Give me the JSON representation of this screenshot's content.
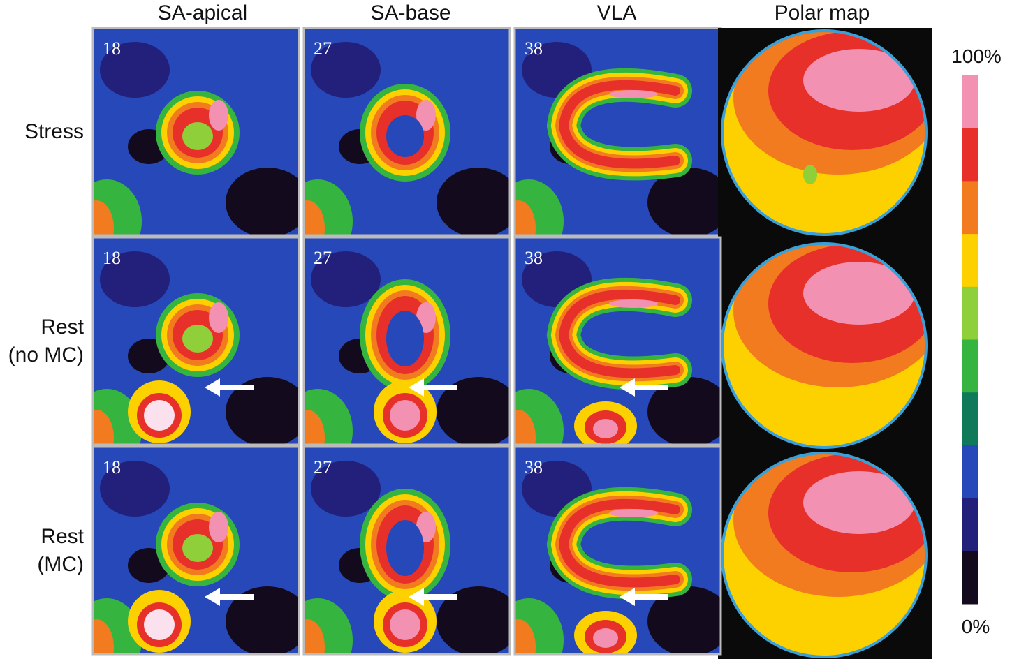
{
  "columns": [
    "SA-apical",
    "SA-base",
    "VLA",
    "Polar map"
  ],
  "rows": [
    {
      "label": [
        "Stress"
      ],
      "slices": [
        "18",
        "27",
        "38"
      ]
    },
    {
      "label": [
        "Rest",
        "(no MC)"
      ],
      "slices": [
        "18",
        "27",
        "38"
      ]
    },
    {
      "label": [
        "Rest",
        "(MC)"
      ],
      "slices": [
        "18",
        "27",
        "38"
      ]
    }
  ],
  "colorbar": {
    "top": "100%",
    "bottom": "0%"
  }
}
